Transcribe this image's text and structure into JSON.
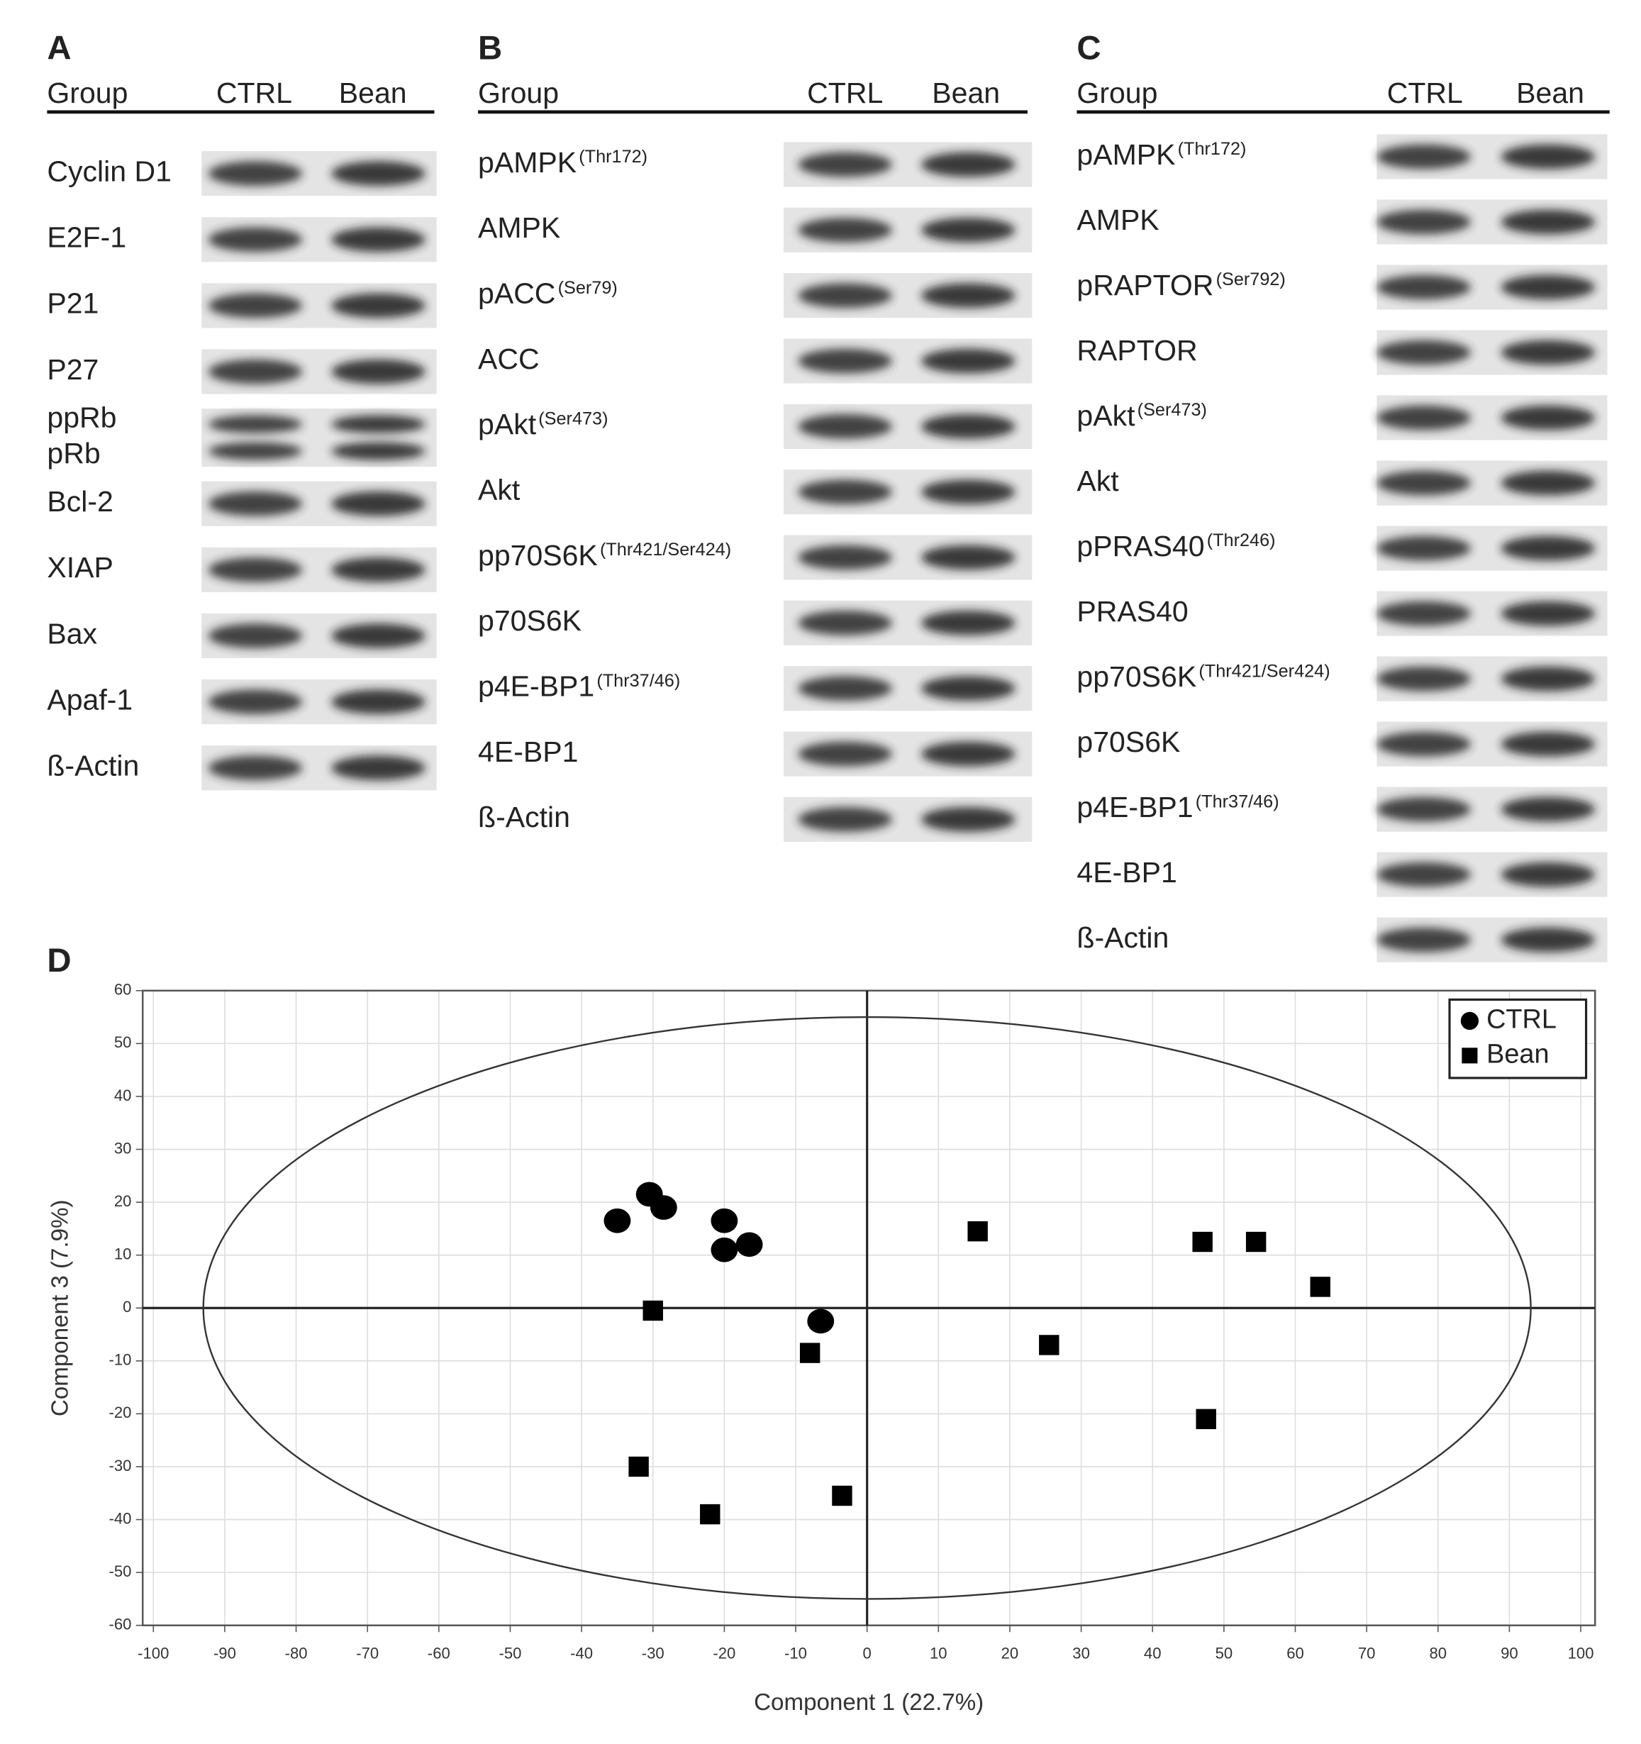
{
  "panels": [
    {
      "letter": "A",
      "header": [
        "Group",
        "CTRL",
        "Bean"
      ],
      "rows": [
        {
          "label": "Cyclin D1"
        },
        {
          "label": "E2F-1"
        },
        {
          "label": "P21"
        },
        {
          "label": "P27"
        },
        {
          "label": "ppRb",
          "label2": "pRb"
        },
        {
          "label": "Bcl-2"
        },
        {
          "label": "XIAP"
        },
        {
          "label": "Bax"
        },
        {
          "label": "Apaf-1"
        },
        {
          "label": "ß-Actin"
        }
      ]
    },
    {
      "letter": "B",
      "header": [
        "Group",
        "CTRL",
        "Bean"
      ],
      "rows": [
        {
          "label": "pAMPK",
          "site": "(Thr172)"
        },
        {
          "label": "AMPK"
        },
        {
          "label": "pACC",
          "site": "(Ser79)"
        },
        {
          "label": "ACC"
        },
        {
          "label": "pAkt",
          "site": "(Ser473)"
        },
        {
          "label": "Akt"
        },
        {
          "label": "pp70S6K",
          "site": "(Thr421/Ser424)"
        },
        {
          "label": "p70S6K"
        },
        {
          "label": "p4E-BP1",
          "site": "(Thr37/46)"
        },
        {
          "label": "4E-BP1"
        },
        {
          "label": "ß-Actin"
        }
      ]
    },
    {
      "letter": "C",
      "header": [
        "Group",
        "CTRL",
        "Bean"
      ],
      "rows": [
        {
          "label": "pAMPK",
          "site": "(Thr172)"
        },
        {
          "label": "AMPK"
        },
        {
          "label": "pRAPTOR",
          "site": "(Ser792)"
        },
        {
          "label": "RAPTOR"
        },
        {
          "label": "pAkt",
          "site": "(Ser473)"
        },
        {
          "label": "Akt"
        },
        {
          "label": "pPRAS40",
          "site": "(Thr246)"
        },
        {
          "label": "PRAS40"
        },
        {
          "label": "pp70S6K",
          "site": "(Thr421/Ser424)"
        },
        {
          "label": "p70S6K"
        },
        {
          "label": "p4E-BP1",
          "site": "(Thr37/46)"
        },
        {
          "label": "4E-BP1"
        },
        {
          "label": "ß-Actin"
        }
      ]
    }
  ],
  "chart_data": {
    "type": "scatter",
    "letter": "D",
    "x_label": "Component 1 (22.7%)",
    "y_label": "Component 3 (7.9%)",
    "xlim": [
      -101.5,
      102
    ],
    "ylim": [
      -60,
      60
    ],
    "xticks": [
      -100,
      -90,
      -80,
      -70,
      -60,
      -50,
      -40,
      -30,
      -20,
      -10,
      0,
      10,
      20,
      30,
      40,
      50,
      60,
      70,
      80,
      90,
      100
    ],
    "yticks": [
      -60,
      -50,
      -40,
      -30,
      -20,
      -10,
      0,
      10,
      20,
      30,
      40,
      50,
      60
    ],
    "grid": true,
    "legend": "top-right",
    "ellipse": {
      "cx": 0,
      "cy": 0,
      "rx": 93,
      "ry": 55
    },
    "series": [
      {
        "name": "CTRL",
        "color": "#000000",
        "marker": "circle",
        "x": [
          -35,
          -30.5,
          -28.5,
          -20,
          -20,
          -16.5,
          -6.5
        ],
        "y": [
          16.5,
          21.5,
          19,
          16.5,
          11,
          12,
          -2.5
        ]
      },
      {
        "name": "Bean",
        "color": "#000000",
        "marker": "square",
        "x": [
          -30,
          -8,
          15.5,
          25.5,
          47,
          54.5,
          63.5,
          47.5,
          -32,
          -22,
          -3.5
        ],
        "y": [
          -0.5,
          -8.5,
          14.5,
          -7,
          12.5,
          12.5,
          4,
          -21,
          -30,
          -39,
          -35.5
        ]
      }
    ]
  }
}
